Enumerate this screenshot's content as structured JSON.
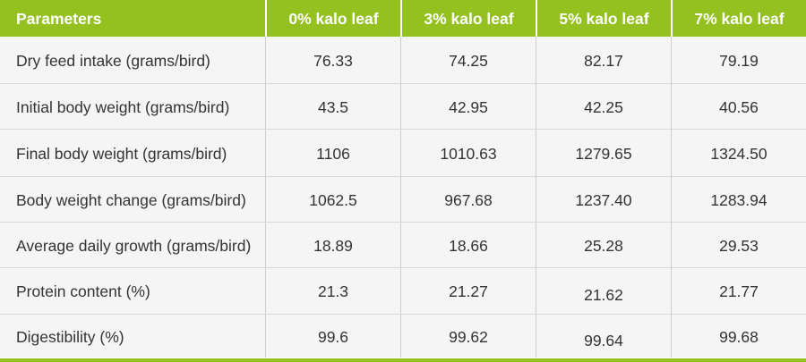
{
  "theme": {
    "header_green": "#94c120",
    "accent_bar_green": "#94c120",
    "row_background": "#f5f5f6",
    "header_text_color": "#ffffff",
    "body_text_color": "#333333"
  },
  "table": {
    "columns": [
      {
        "label": "Parameters"
      },
      {
        "label": "0% kalo leaf"
      },
      {
        "label": "3% kalo leaf"
      },
      {
        "label": "5% kalo leaf"
      },
      {
        "label": "7% kalo leaf"
      }
    ],
    "rows": [
      {
        "parameter": "Dry feed intake (grams/bird)",
        "values": [
          "76.33",
          "74.25",
          "82.17",
          "79.19"
        ]
      },
      {
        "parameter": "Initial body weight (grams/bird)",
        "values": [
          "43.5",
          "42.95",
          "42.25",
          "40.56"
        ]
      },
      {
        "parameter": "Final body weight (grams/bird)",
        "values": [
          "1106",
          "1010.63",
          "1279.65",
          "1324.50"
        ]
      },
      {
        "parameter": "Body weight change (grams/bird)",
        "values": [
          "1062.5",
          "967.68",
          "1237.40",
          "1283.94"
        ]
      },
      {
        "parameter": "Average daily growth (grams/bird)",
        "values": [
          "18.89",
          "18.66",
          "25.28",
          "29.53"
        ]
      },
      {
        "parameter": "Protein content (%)",
        "values": [
          "21.3",
          "21.27",
          "21.62",
          "21.77"
        ]
      },
      {
        "parameter": "Digestibility (%)",
        "values": [
          "99.6",
          "99.62",
          "99.64",
          "99.68"
        ]
      }
    ]
  },
  "chart_data": {
    "type": "table",
    "title": "",
    "columns": [
      "Parameters",
      "0% kalo leaf",
      "3% kalo leaf",
      "5% kalo leaf",
      "7% kalo leaf"
    ],
    "rows": [
      [
        "Dry feed intake (grams/bird)",
        "76.33",
        "74.25",
        "82.17",
        "79.19"
      ],
      [
        "Initial body weight (grams/bird)",
        "43.5",
        "42.95",
        "42.25",
        "40.56"
      ],
      [
        "Final body weight (grams/bird)",
        "1106",
        "1010.63",
        "1279.65",
        "1324.50"
      ],
      [
        "Body weight change (grams/bird)",
        "1062.5",
        "967.68",
        "1237.40",
        "1283.94"
      ],
      [
        "Average daily growth (grams/bird)",
        "18.89",
        "18.66",
        "25.28",
        "29.53"
      ],
      [
        "Protein content (%)",
        "21.3",
        "21.27",
        "21.62",
        "21.77"
      ],
      [
        "Digestibility (%)",
        "99.6",
        "99.62",
        "99.64",
        "99.68"
      ]
    ]
  }
}
